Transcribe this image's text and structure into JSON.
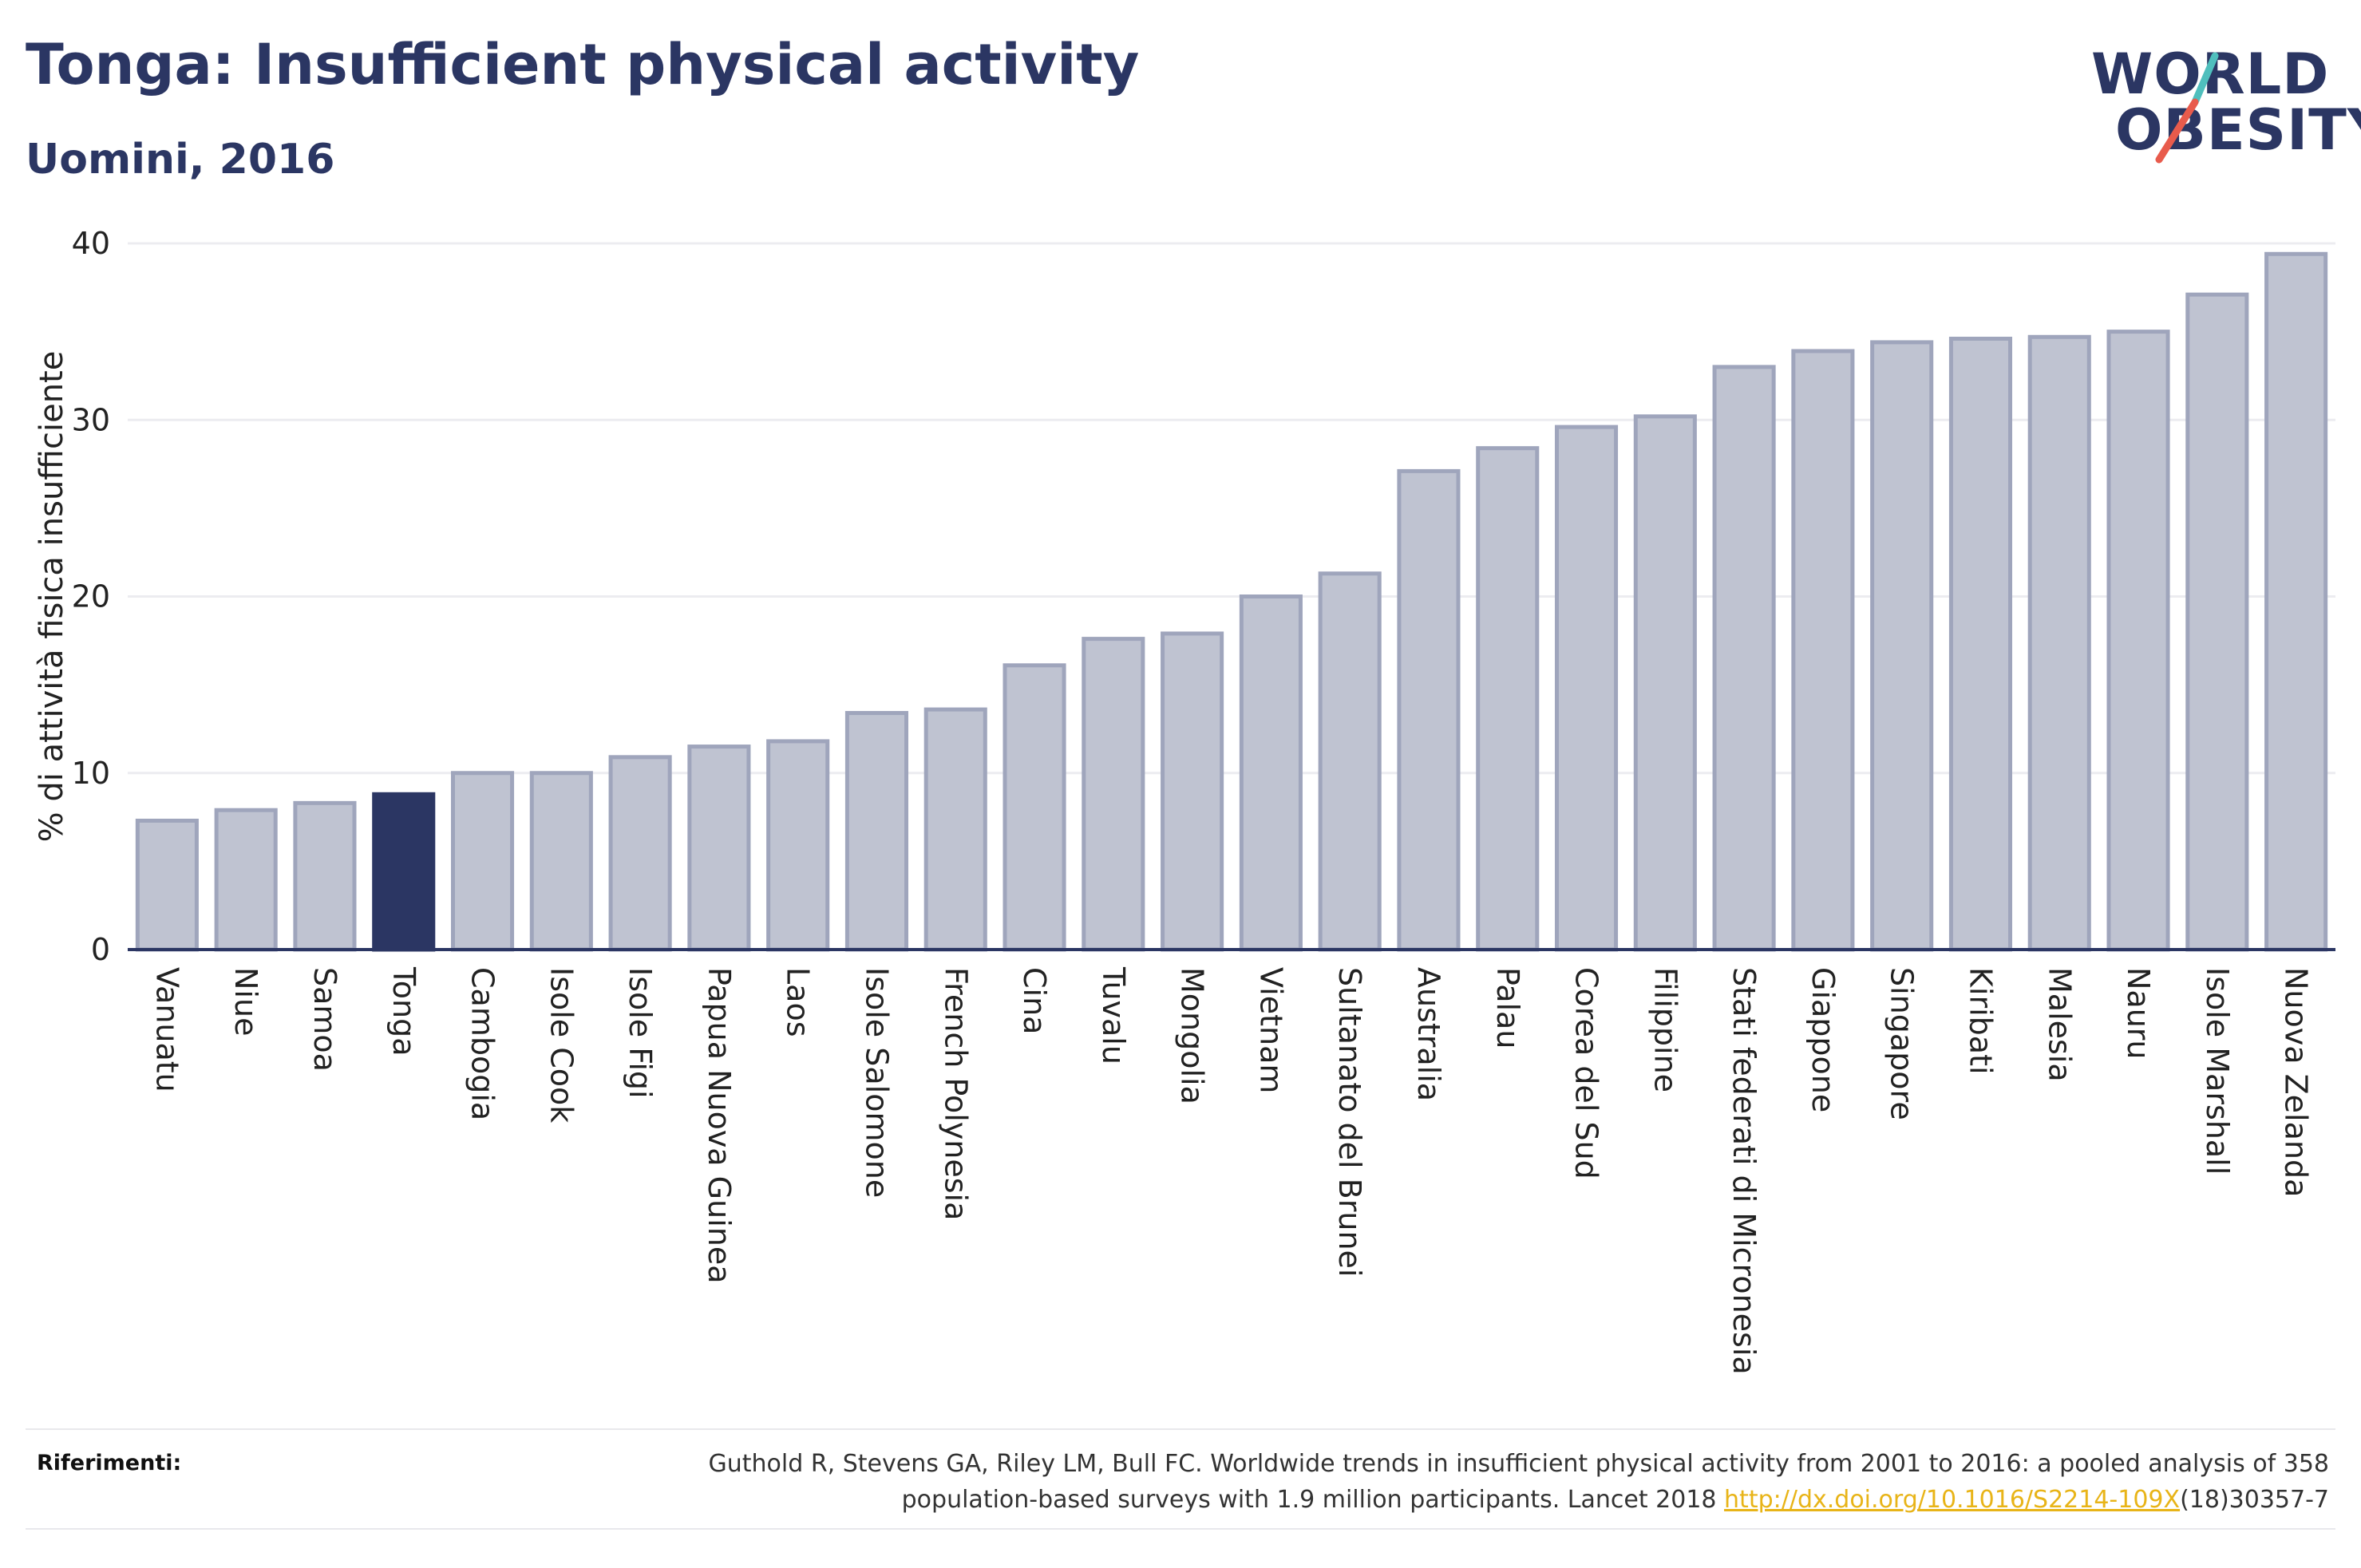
{
  "header": {
    "title": "Tonga: Insufficient physical activity",
    "subtitle": "Uomini, 2016"
  },
  "logo": {
    "line1": "WORLD",
    "line2": "OBESITY",
    "accent_colors": [
      "#4fbfbd",
      "#e85b4c"
    ]
  },
  "chart_data": {
    "type": "bar",
    "ylabel": "% di attività fisica insufficiente",
    "xlabel": "",
    "ylim": [
      0,
      40
    ],
    "yticks": [
      0,
      10,
      20,
      30,
      40
    ],
    "grid": true,
    "highlight": "Tonga",
    "colors": {
      "bar": "#bfc3d1",
      "bar_edge": "#9fa5bc",
      "highlight": "#2b3663",
      "grid": "#ececf0",
      "axis": "#2b3663"
    },
    "categories": [
      "Vanuatu",
      "Niue",
      "Samoa",
      "Tonga",
      "Cambogia",
      "Isole Cook",
      "Isole Figi",
      "Papua Nuova Guinea",
      "Laos",
      "Isole Salomone",
      "French Polynesia",
      "Cina",
      "Tuvalu",
      "Mongolia",
      "Vietnam",
      "Sultanato del Brunei",
      "Australia",
      "Palau",
      "Corea del Sud",
      "Filippine",
      "Stati federati di Micronesia",
      "Giappone",
      "Singapore",
      "Kiribati",
      "Malesia",
      "Nauru",
      "Isole Marshall",
      "Nuova Zelanda"
    ],
    "values": [
      7.3,
      7.9,
      8.3,
      8.8,
      10.0,
      10.0,
      10.9,
      11.5,
      11.8,
      13.4,
      13.6,
      16.1,
      17.6,
      17.9,
      20.0,
      21.3,
      27.1,
      28.4,
      29.6,
      30.2,
      33.0,
      33.9,
      34.4,
      34.6,
      34.7,
      35.0,
      37.1,
      39.4
    ]
  },
  "references": {
    "label": "Riferimenti:",
    "line1": "Guthold R, Stevens GA, Riley LM, Bull FC. Worldwide trends in insufficient physical activity from 2001 to 2016: a pooled analysis of 358",
    "line2_prefix": "population-based surveys with 1.9 million participants. Lancet 2018 ",
    "link": "http://dx.doi.org/10.1016/S2214-109X",
    "line2_suffix": "(18)30357-7"
  }
}
